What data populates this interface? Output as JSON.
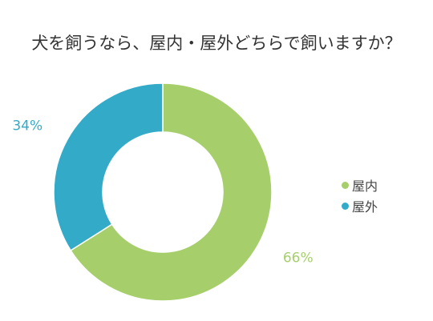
{
  "chart_data": {
    "type": "pie",
    "title": "犬を飼うなら、屋内・屋外どちらで飼いますか？",
    "categories": [
      "屋内",
      "屋外"
    ],
    "values": [
      66,
      34
    ],
    "labels": [
      "66%",
      "34%"
    ],
    "colors": [
      "#a6cf6c",
      "#33abc8"
    ],
    "legend_position": "right"
  }
}
